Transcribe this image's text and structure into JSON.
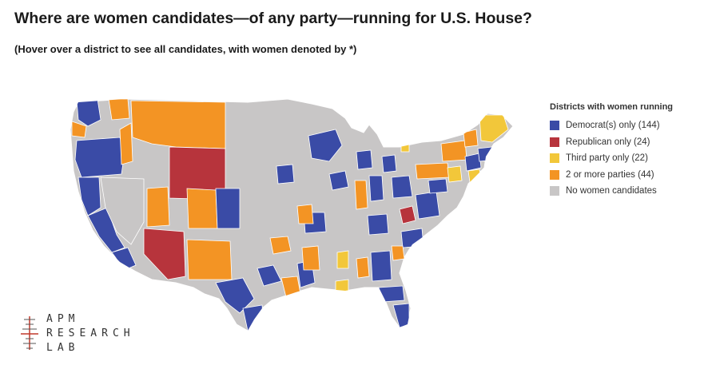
{
  "title": "Where are women candidates—of any party—running for U.S. House?",
  "subtitle": "(Hover over a district to see all candidates, with women denoted by *)",
  "legend": {
    "title": "Districts with women running",
    "items": [
      {
        "key": "dem",
        "label": "Democrat(s) only (144)",
        "color": "#3a4ba6",
        "count": 144
      },
      {
        "key": "rep",
        "label": "Republican only (24)",
        "color": "#b7343c",
        "count": 24
      },
      {
        "key": "third",
        "label": "Third party only (22)",
        "color": "#f2c73a",
        "count": 22
      },
      {
        "key": "multi",
        "label": "2 or more parties (44)",
        "color": "#f39424",
        "count": 44
      },
      {
        "key": "none",
        "label": "No women candidates",
        "color": "#c8c6c6"
      }
    ]
  },
  "logo": {
    "line1": "APM",
    "line2": "RESEARCH",
    "line3": "LAB",
    "accent": "#c0392b"
  },
  "map": {
    "background_color": "#c8c6c6",
    "border_color": "#ffffff"
  }
}
